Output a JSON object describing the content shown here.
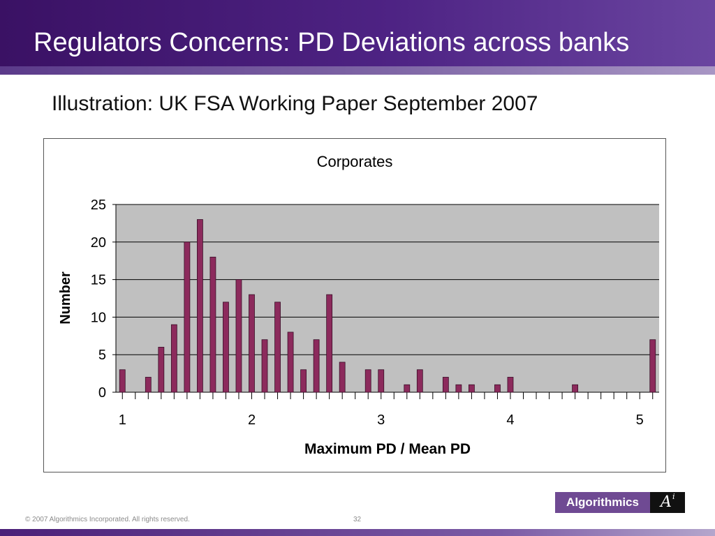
{
  "slide": {
    "title": "Regulators Concerns: PD Deviations across banks",
    "subtitle": "Illustration: UK FSA Working Paper September 2007",
    "footer_copyright": "© 2007 Algorithmics Incorporated. All rights reserved.",
    "page_number": "32",
    "logo_text": "Algorithmics",
    "logo_mark": "A",
    "logo_mark_sup": "i"
  },
  "colors": {
    "bar_fill": "#8c2a5c",
    "plot_bg": "#c0c0c0",
    "title_bg": "#3a1164"
  },
  "chart_data": {
    "type": "bar",
    "title": "Corporates",
    "xlabel": "Maximum PD / Mean PD",
    "ylabel": "Number",
    "xlim": [
      0.95,
      5.15
    ],
    "ylim": [
      0,
      25
    ],
    "grid": true,
    "x_tick_labels": [
      "1",
      "2",
      "3",
      "4",
      "5"
    ],
    "y_tick_labels": [
      "0",
      "5",
      "10",
      "15",
      "20",
      "25"
    ],
    "x": [
      1.0,
      1.2,
      1.3,
      1.4,
      1.5,
      1.6,
      1.7,
      1.8,
      1.9,
      2.0,
      2.1,
      2.2,
      2.3,
      2.4,
      2.5,
      2.6,
      2.7,
      2.9,
      3.0,
      3.2,
      3.3,
      3.5,
      3.6,
      3.7,
      3.9,
      4.0,
      4.5,
      5.1
    ],
    "values": [
      3,
      2,
      6,
      9,
      20,
      23,
      18,
      12,
      15,
      13,
      7,
      12,
      8,
      3,
      7,
      13,
      4,
      3,
      3,
      1,
      3,
      2,
      1,
      1,
      1,
      2,
      1,
      7
    ]
  }
}
